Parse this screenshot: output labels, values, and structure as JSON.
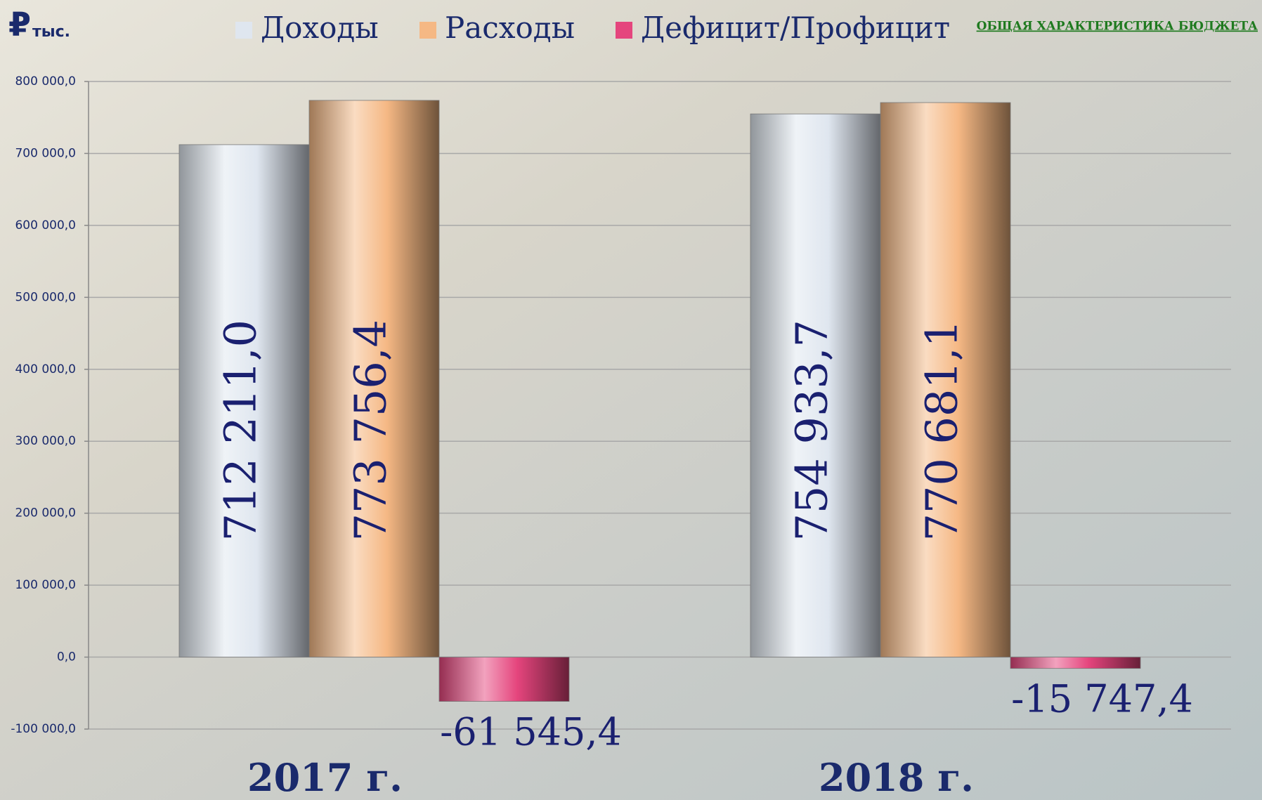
{
  "chart_data": {
    "type": "bar",
    "currency_symbol": "₽",
    "unit": "тыс.",
    "link": "ОБЩАЯ ХАРАКТЕРИСТИКА БЮДЖЕТА",
    "categories": [
      "2017 г.",
      "2018 г."
    ],
    "series": [
      {
        "name": "Доходы",
        "color": "#dfe6ef",
        "values": [
          712211.0,
          754933.7
        ],
        "value_labels": [
          "712 211,0",
          "754 933,7"
        ]
      },
      {
        "name": "Расходы",
        "color": "#f5b884",
        "values": [
          773756.4,
          770681.1
        ],
        "value_labels": [
          "773 756,4",
          "770 681,1"
        ]
      },
      {
        "name": "Дефицит/Профицит",
        "color": "#e5457d",
        "values": [
          -61545.4,
          -15747.4
        ],
        "value_labels": [
          "-61 545,4",
          "-15 747,4"
        ]
      }
    ],
    "ylim": [
      -100000,
      800000
    ],
    "yticks": [
      {
        "value": -100000,
        "label": "-100 000,0"
      },
      {
        "value": 0,
        "label": "0,0"
      },
      {
        "value": 100000,
        "label": "100 000,0"
      },
      {
        "value": 200000,
        "label": "200 000,0"
      },
      {
        "value": 300000,
        "label": "300 000,0"
      },
      {
        "value": 400000,
        "label": "400 000,0"
      },
      {
        "value": 500000,
        "label": "500 000,0"
      },
      {
        "value": 600000,
        "label": "600 000,0"
      },
      {
        "value": 700000,
        "label": "700 000,0"
      },
      {
        "value": 800000,
        "label": "800 000,0"
      }
    ],
    "grid": true
  }
}
